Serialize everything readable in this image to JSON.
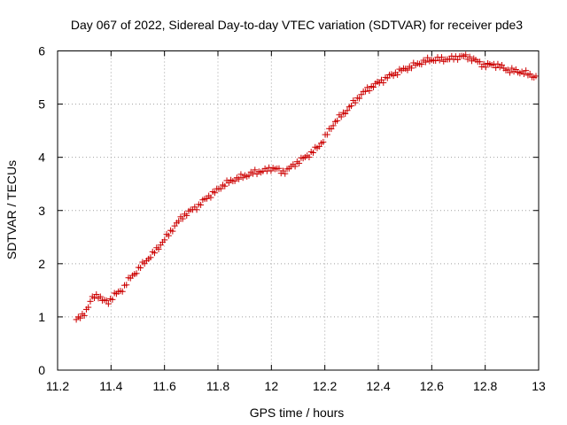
{
  "chart_data": {
    "type": "scatter",
    "title": "Day 067 of 2022, Sidereal Day-to-day VTEC variation (SDTVAR) for receiver pde3",
    "xlabel": "GPS time / hours",
    "ylabel": "SDTVAR / TECUs",
    "xlim": [
      11.2,
      13.0
    ],
    "ylim": [
      0,
      6
    ],
    "x_ticks": [
      11.2,
      11.4,
      11.6,
      11.8,
      12.0,
      12.2,
      12.4,
      12.6,
      12.8,
      13.0
    ],
    "x_tick_labels": [
      "11.2",
      "11.4",
      "11.6",
      "11.8",
      "12",
      "12.2",
      "12.4",
      "12.6",
      "12.8",
      "13"
    ],
    "y_ticks": [
      0,
      1,
      2,
      3,
      4,
      5,
      6
    ],
    "y_tick_labels": [
      "0",
      "1",
      "2",
      "3",
      "4",
      "5",
      "6"
    ],
    "grid": true,
    "marker": "+",
    "color": "#cc0000",
    "anchors": [
      [
        11.27,
        0.95
      ],
      [
        11.29,
        1.0
      ],
      [
        11.31,
        1.15
      ],
      [
        11.33,
        1.35
      ],
      [
        11.35,
        1.42
      ],
      [
        11.37,
        1.3
      ],
      [
        11.39,
        1.28
      ],
      [
        11.41,
        1.4
      ],
      [
        11.44,
        1.5
      ],
      [
        11.47,
        1.72
      ],
      [
        11.5,
        1.88
      ],
      [
        11.53,
        2.05
      ],
      [
        11.56,
        2.2
      ],
      [
        11.6,
        2.45
      ],
      [
        11.64,
        2.72
      ],
      [
        11.67,
        2.9
      ],
      [
        11.7,
        3.0
      ],
      [
        11.73,
        3.1
      ],
      [
        11.76,
        3.25
      ],
      [
        11.79,
        3.35
      ],
      [
        11.82,
        3.48
      ],
      [
        11.86,
        3.58
      ],
      [
        11.9,
        3.65
      ],
      [
        11.94,
        3.72
      ],
      [
        11.98,
        3.75
      ],
      [
        12.0,
        3.8
      ],
      [
        12.02,
        3.78
      ],
      [
        12.04,
        3.72
      ],
      [
        12.06,
        3.76
      ],
      [
        12.09,
        3.88
      ],
      [
        12.12,
        3.98
      ],
      [
        12.15,
        4.08
      ],
      [
        12.18,
        4.22
      ],
      [
        12.21,
        4.45
      ],
      [
        12.24,
        4.68
      ],
      [
        12.27,
        4.82
      ],
      [
        12.3,
        4.98
      ],
      [
        12.33,
        5.15
      ],
      [
        12.36,
        5.28
      ],
      [
        12.4,
        5.4
      ],
      [
        12.44,
        5.52
      ],
      [
        12.48,
        5.62
      ],
      [
        12.52,
        5.7
      ],
      [
        12.56,
        5.78
      ],
      [
        12.59,
        5.83
      ],
      [
        12.63,
        5.84
      ],
      [
        12.67,
        5.85
      ],
      [
        12.71,
        5.9
      ],
      [
        12.74,
        5.88
      ],
      [
        12.77,
        5.8
      ],
      [
        12.8,
        5.72
      ],
      [
        12.83,
        5.75
      ],
      [
        12.86,
        5.7
      ],
      [
        12.89,
        5.63
      ],
      [
        12.92,
        5.62
      ],
      [
        12.95,
        5.58
      ],
      [
        12.97,
        5.55
      ],
      [
        12.99,
        5.5
      ]
    ]
  }
}
